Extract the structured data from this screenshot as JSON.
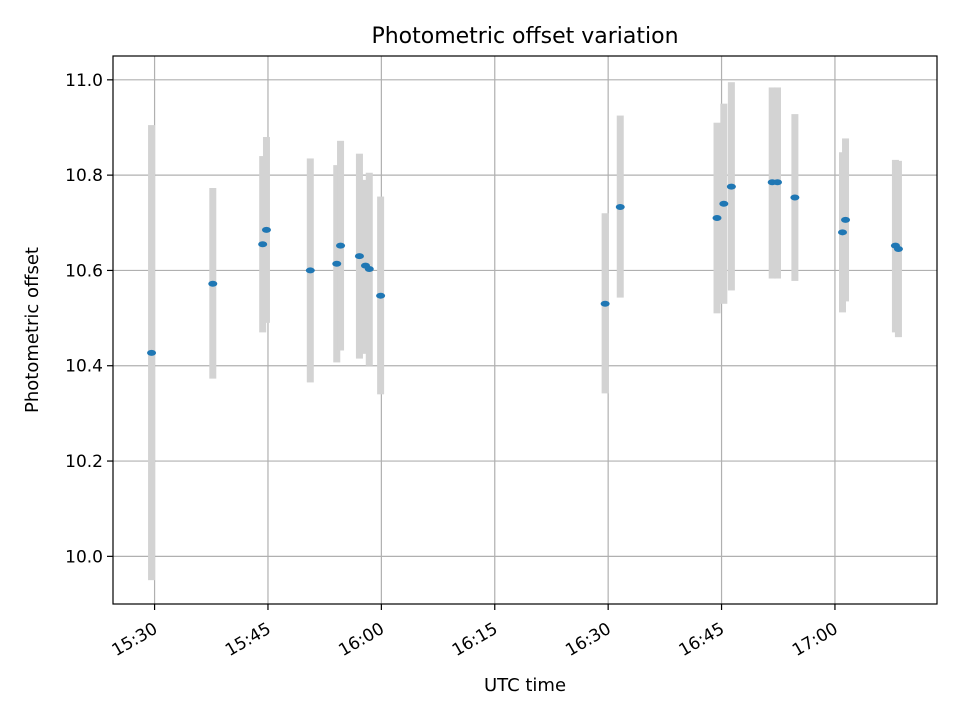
{
  "chart_data": {
    "type": "scatter",
    "title": "Photometric offset variation",
    "xlabel": "UTC time",
    "ylabel": "Photometric offset",
    "xlim_minutes": [
      -5.5,
      103.5
    ],
    "ylim": [
      9.9,
      11.05
    ],
    "x_origin": "15:30",
    "x_ticks": [
      {
        "label": "15:30",
        "minutes": 0
      },
      {
        "label": "15:45",
        "minutes": 15
      },
      {
        "label": "16:00",
        "minutes": 30
      },
      {
        "label": "16:15",
        "minutes": 45
      },
      {
        "label": "16:30",
        "minutes": 60
      },
      {
        "label": "16:45",
        "minutes": 75
      },
      {
        "label": "17:00",
        "minutes": 90
      }
    ],
    "y_ticks": [
      {
        "label": "10.0",
        "value": 10.0
      },
      {
        "label": "10.2",
        "value": 10.2
      },
      {
        "label": "10.4",
        "value": 10.4
      },
      {
        "label": "10.6",
        "value": 10.6
      },
      {
        "label": "10.8",
        "value": 10.8
      },
      {
        "label": "11.0",
        "value": 11.0
      }
    ],
    "grid": true,
    "marker_color": "#1f77b4",
    "errorbar_color": "#d3d3d3",
    "points": [
      {
        "t": -0.4,
        "y": 10.427,
        "ylo": 9.95,
        "yhi": 10.905
      },
      {
        "t": 7.7,
        "y": 10.572,
        "ylo": 10.373,
        "yhi": 10.773
      },
      {
        "t": 14.3,
        "y": 10.655,
        "ylo": 10.47,
        "yhi": 10.84
      },
      {
        "t": 14.8,
        "y": 10.685,
        "ylo": 10.49,
        "yhi": 10.88
      },
      {
        "t": 20.6,
        "y": 10.6,
        "ylo": 10.365,
        "yhi": 10.835
      },
      {
        "t": 24.1,
        "y": 10.614,
        "ylo": 10.407,
        "yhi": 10.821
      },
      {
        "t": 24.6,
        "y": 10.652,
        "ylo": 10.432,
        "yhi": 10.872
      },
      {
        "t": 27.1,
        "y": 10.63,
        "ylo": 10.415,
        "yhi": 10.845
      },
      {
        "t": 27.9,
        "y": 10.61,
        "ylo": 10.425,
        "yhi": 10.79
      },
      {
        "t": 28.4,
        "y": 10.603,
        "ylo": 10.4,
        "yhi": 10.805
      },
      {
        "t": 29.9,
        "y": 10.547,
        "ylo": 10.34,
        "yhi": 10.755
      },
      {
        "t": 59.6,
        "y": 10.53,
        "ylo": 10.342,
        "yhi": 10.72
      },
      {
        "t": 61.6,
        "y": 10.733,
        "ylo": 10.543,
        "yhi": 10.925
      },
      {
        "t": 74.4,
        "y": 10.71,
        "ylo": 10.51,
        "yhi": 10.91
      },
      {
        "t": 75.3,
        "y": 10.74,
        "ylo": 10.53,
        "yhi": 10.95
      },
      {
        "t": 76.3,
        "y": 10.776,
        "ylo": 10.558,
        "yhi": 10.995
      },
      {
        "t": 81.7,
        "y": 10.785,
        "ylo": 10.583,
        "yhi": 10.984
      },
      {
        "t": 82.4,
        "y": 10.785,
        "ylo": 10.583,
        "yhi": 10.984
      },
      {
        "t": 84.7,
        "y": 10.753,
        "ylo": 10.578,
        "yhi": 10.928
      },
      {
        "t": 91.0,
        "y": 10.68,
        "ylo": 10.512,
        "yhi": 10.848
      },
      {
        "t": 91.4,
        "y": 10.706,
        "ylo": 10.535,
        "yhi": 10.877
      },
      {
        "t": 98.0,
        "y": 10.652,
        "ylo": 10.47,
        "yhi": 10.832
      },
      {
        "t": 98.4,
        "y": 10.645,
        "ylo": 10.46,
        "yhi": 10.83
      }
    ]
  }
}
